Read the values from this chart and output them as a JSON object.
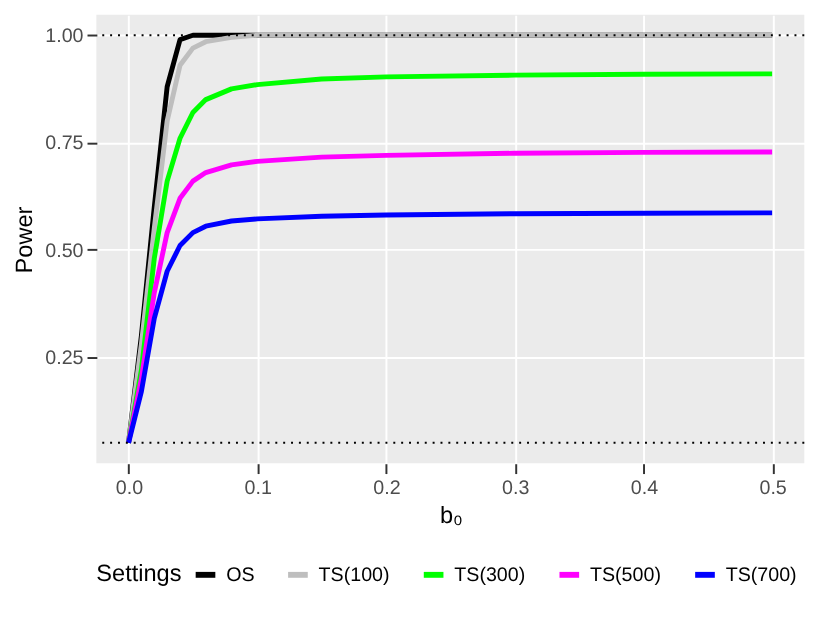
{
  "chart_data": {
    "type": "line",
    "xlabel": "b₀",
    "ylabel": "Power",
    "legend_title": "Settings",
    "x": [
      0,
      0.01,
      0.02,
      0.03,
      0.04,
      0.05,
      0.06,
      0.08,
      0.1,
      0.15,
      0.2,
      0.3,
      0.4,
      0.5
    ],
    "series": [
      {
        "name": "OS",
        "color": "#000000",
        "values": [
          0.05,
          0.3,
          0.6,
          0.88,
          0.99,
          1.0,
          1.0,
          1.0,
          1.0,
          1.0,
          1.0,
          1.0,
          1.0,
          1.0
        ]
      },
      {
        "name": "TS(100)",
        "color": "#bebebe",
        "values": [
          0.05,
          0.28,
          0.55,
          0.8,
          0.93,
          0.97,
          0.985,
          0.995,
          1.0,
          1.0,
          1.0,
          1.0,
          1.0,
          1.0
        ]
      },
      {
        "name": "TS(300)",
        "color": "#00ff00",
        "values": [
          0.05,
          0.22,
          0.48,
          0.66,
          0.76,
          0.82,
          0.85,
          0.875,
          0.885,
          0.898,
          0.903,
          0.907,
          0.909,
          0.91
        ]
      },
      {
        "name": "TS(500)",
        "color": "#ff00ff",
        "values": [
          0.05,
          0.2,
          0.4,
          0.54,
          0.62,
          0.66,
          0.68,
          0.698,
          0.706,
          0.716,
          0.72,
          0.725,
          0.727,
          0.728
        ]
      },
      {
        "name": "TS(700)",
        "color": "#0000ff",
        "values": [
          0.05,
          0.17,
          0.34,
          0.45,
          0.51,
          0.54,
          0.555,
          0.567,
          0.572,
          0.578,
          0.581,
          0.584,
          0.585,
          0.586
        ]
      }
    ],
    "xlim": [
      -0.025,
      0.525
    ],
    "xticks": [
      {
        "value": 0,
        "label": "0.0"
      },
      0.1,
      0.2,
      0.3,
      0.4,
      0.5
    ],
    "ylim": [
      0.0025,
      1.0475
    ],
    "yticks": [
      0.25,
      {
        "value": 0.5,
        "label": "0.50"
      },
      0.75,
      {
        "value": 1,
        "label": "1.00"
      }
    ],
    "ref_lines": [
      {
        "axis": "y",
        "value": 1,
        "color": "#000000",
        "line_style": "dotted"
      },
      {
        "axis": "y",
        "value": 0.05,
        "color": "#000000",
        "line_style": "dotted"
      }
    ],
    "grid": true,
    "legend": "bottom",
    "marker": "none",
    "line_style": "solid"
  }
}
